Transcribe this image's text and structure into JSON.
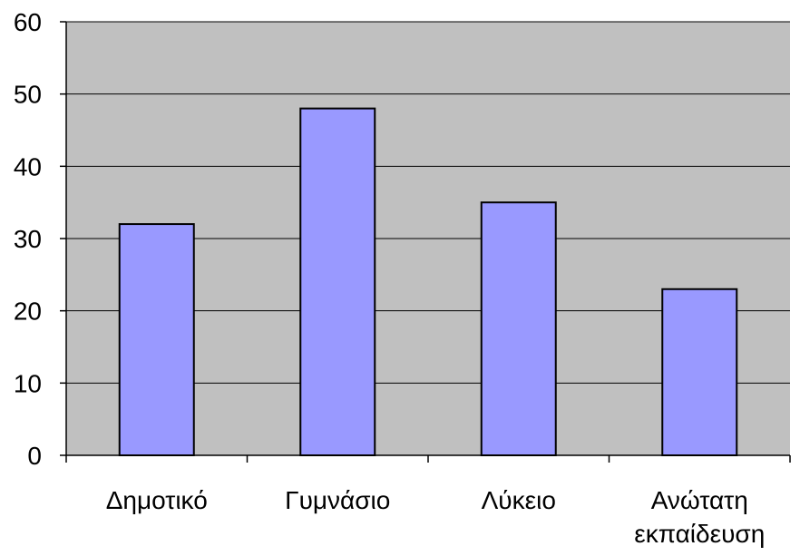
{
  "chart_data": {
    "type": "bar",
    "categories": [
      "Δημοτικό",
      "Γυμνάσιο",
      "Λύκειο",
      "Ανώτατη εκπαίδευση"
    ],
    "category_lines": [
      [
        "Δημοτικό"
      ],
      [
        "Γυμνάσιο"
      ],
      [
        "Λύκειο"
      ],
      [
        "Ανώτατη",
        "εκπαίδευση"
      ]
    ],
    "values": [
      32,
      48,
      35,
      23
    ],
    "ylim": [
      0,
      60
    ],
    "yticks": [
      0,
      10,
      20,
      30,
      40,
      50,
      60
    ],
    "title": "",
    "xlabel": "",
    "ylabel": "",
    "grid": true,
    "legend": "none",
    "colors": {
      "plot_background": "#c0c0c0",
      "bar_fill": "#9999ff",
      "bar_stroke": "#000000",
      "gridline": "#000000",
      "axis": "#000000"
    }
  }
}
